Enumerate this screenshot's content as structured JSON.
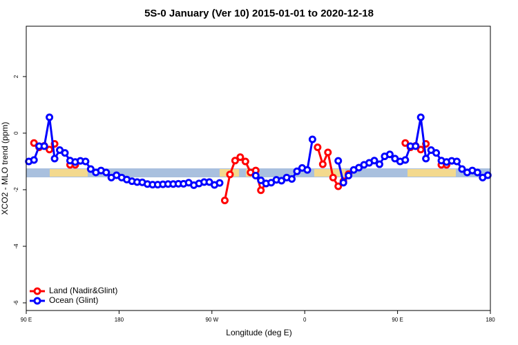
{
  "chart_data": {
    "type": "line",
    "title": "5S-0 January (Ver 10)   2015-01-01 to 2020-12-18",
    "xlabel": "Longitude (deg E)",
    "ylabel": "XCO2 - MLO trend (ppm)",
    "xlim": [
      90,
      540
    ],
    "xticks": [
      {
        "value": 90,
        "label": "90 E"
      },
      {
        "value": 180,
        "label": "180"
      },
      {
        "value": 270,
        "label": "90 W"
      },
      {
        "value": 360,
        "label": "0"
      },
      {
        "value": 450,
        "label": "90 E"
      },
      {
        "value": 540,
        "label": "180"
      }
    ],
    "ylim": [
      -6.27,
      3.78
    ],
    "yticks": [
      -6,
      -4,
      -2,
      0,
      2
    ],
    "legend": "bottom-left",
    "x": [
      92.5,
      97.5,
      102.5,
      107.5,
      112.5,
      117.5,
      122.5,
      127.5,
      132.5,
      137.5,
      142.5,
      147.5,
      152.5,
      157.5,
      162.5,
      167.5,
      172.5,
      177.5,
      182.5,
      187.5,
      192.5,
      197.5,
      202.5,
      207.5,
      212.5,
      217.5,
      222.5,
      227.5,
      232.5,
      237.5,
      242.5,
      247.5,
      252.5,
      257.5,
      262.5,
      267.5,
      272.5,
      277.5,
      282.5,
      287.5,
      292.5,
      297.5,
      302.5,
      307.5,
      312.5,
      317.5,
      322.5,
      327.5,
      332.5,
      337.5,
      342.5,
      347.5,
      352.5,
      357.5,
      362.5,
      367.5,
      372.5,
      377.5,
      382.5,
      387.5,
      392.5,
      397.5,
      402.5,
      407.5,
      412.5,
      417.5,
      422.5,
      427.5,
      432.5,
      437.5,
      442.5,
      447.5,
      452.5,
      457.5,
      462.5,
      467.5,
      472.5,
      477.5,
      482.5,
      487.5,
      492.5,
      497.5,
      502.5,
      507.5,
      512.5,
      517.5,
      522.5,
      527.5,
      532.5,
      537.5
    ],
    "series": [
      {
        "name": "Land (Nadir&Glint)",
        "color": "#ff0000",
        "values": [
          null,
          -0.35,
          -0.5,
          -0.45,
          -0.58,
          -0.38,
          null,
          null,
          -1.12,
          -1.12,
          null,
          null,
          null,
          null,
          null,
          null,
          null,
          null,
          null,
          null,
          null,
          null,
          null,
          null,
          null,
          null,
          null,
          null,
          null,
          null,
          null,
          null,
          null,
          null,
          null,
          null,
          null,
          null,
          -2.38,
          -1.46,
          -0.97,
          -0.85,
          -1.0,
          -1.39,
          -1.32,
          -2.02,
          -1.78,
          null,
          null,
          null,
          null,
          null,
          null,
          null,
          null,
          null,
          -0.5,
          -1.1,
          -0.68,
          -1.57,
          -1.88,
          -1.7,
          -1.45,
          null,
          null,
          null,
          null,
          null,
          null,
          null,
          null,
          null,
          null,
          -0.35,
          -0.5,
          -0.45,
          -0.58,
          -0.38,
          null,
          null,
          -1.12,
          -1.12,
          null,
          null,
          null,
          null,
          null,
          null,
          null,
          null
        ]
      },
      {
        "name": "Ocean (Glint)",
        "color": "#0000ff",
        "values": [
          -1.0,
          -0.95,
          -0.46,
          -0.46,
          0.56,
          -0.9,
          -0.6,
          -0.7,
          -0.97,
          -1.02,
          -0.98,
          -1.0,
          -1.27,
          -1.39,
          -1.32,
          -1.39,
          -1.57,
          -1.49,
          -1.57,
          -1.64,
          -1.7,
          -1.73,
          -1.74,
          -1.8,
          -1.82,
          -1.82,
          -1.81,
          -1.8,
          -1.8,
          -1.79,
          -1.79,
          -1.75,
          -1.84,
          -1.78,
          -1.73,
          -1.73,
          -1.83,
          -1.76,
          null,
          null,
          null,
          null,
          null,
          null,
          -1.5,
          -1.67,
          -1.78,
          -1.75,
          -1.65,
          -1.68,
          -1.57,
          -1.62,
          -1.35,
          -1.23,
          -1.3,
          -0.22,
          null,
          null,
          null,
          null,
          -0.98,
          -1.75,
          -1.5,
          -1.3,
          -1.22,
          -1.12,
          -1.05,
          -0.97,
          -1.1,
          -0.82,
          -0.75,
          -0.9,
          -1.0,
          -0.95,
          -0.46,
          -0.46,
          0.56,
          -0.9,
          -0.6,
          -0.7,
          -0.97,
          -1.02,
          -0.98,
          -1.0,
          -1.27,
          -1.39,
          -1.32,
          -1.39,
          -1.57,
          -1.49
        ]
      }
    ]
  }
}
